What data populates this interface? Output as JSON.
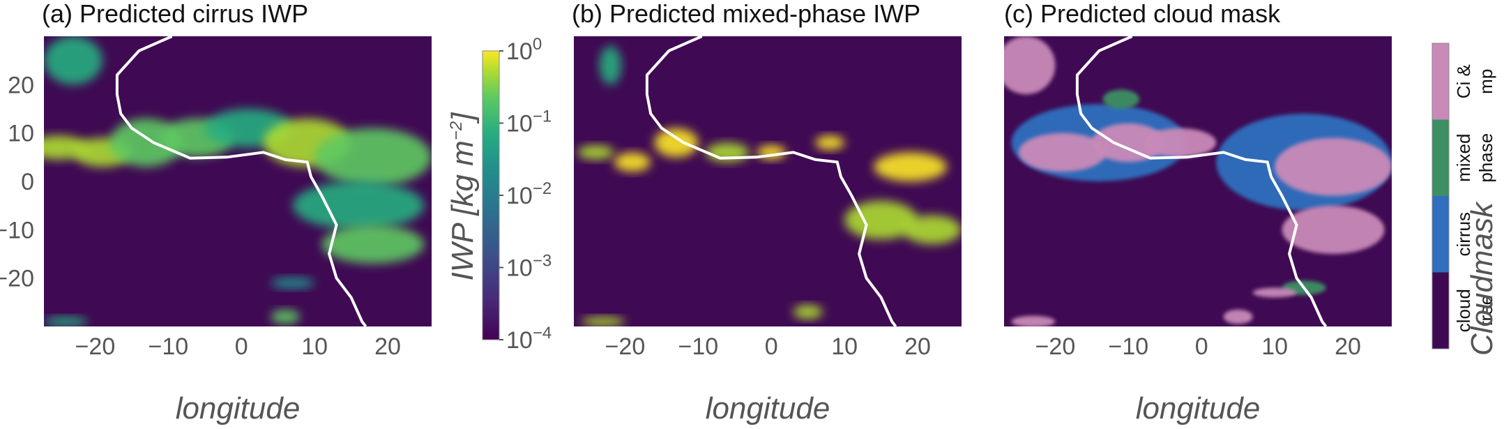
{
  "colors": {
    "background": "#3f0a53",
    "coastline": "#ffffff",
    "tick_text": "#555555",
    "mask_cloud_free": "#3f0a53",
    "mask_cirrus": "#2f6fbe",
    "mask_mixed_phase": "#3c8f63",
    "mask_ci_mp": "#c98ab8"
  },
  "chart_data": [
    {
      "type": "heatmap",
      "title": "(a)  Predicted cirrus IWP",
      "xlabel": "longitude",
      "ylabel": "",
      "xlim": [
        -27,
        26
      ],
      "ylim": [
        -30,
        30
      ],
      "xticks": [
        -20,
        -10,
        0,
        10,
        20
      ],
      "yticks": [
        20,
        10,
        0,
        -10,
        -20
      ],
      "scale": "log",
      "colorbar_label": "IWP [kg m",
      "colorbar_label_exp": "−2",
      "colorbar_label_close": "]",
      "colorbar_ticks": [
        {
          "value": 1,
          "base": "10",
          "exp": "0"
        },
        {
          "value": 0.1,
          "base": "10",
          "exp": "−1"
        },
        {
          "value": 0.01,
          "base": "10",
          "exp": "−2"
        },
        {
          "value": 0.001,
          "base": "10",
          "exp": "−3"
        },
        {
          "value": 0.0001,
          "base": "10",
          "exp": "−4"
        }
      ],
      "colorbar_range": [
        0.0001,
        1
      ]
    },
    {
      "type": "heatmap",
      "title": "(b)  Predicted mixed-phase IWP",
      "xlabel": "longitude",
      "ylabel": "",
      "xlim": [
        -27,
        26
      ],
      "ylim": [
        -30,
        30
      ],
      "xticks": [
        -20,
        -10,
        0,
        10,
        20
      ],
      "scale": "log",
      "colorbar_range": [
        0.0001,
        1
      ]
    },
    {
      "type": "heatmap",
      "title": "(c)  Predicted cloud mask",
      "xlabel": "longitude",
      "ylabel": "",
      "xlim": [
        -27,
        26
      ],
      "ylim": [
        -30,
        30
      ],
      "xticks": [
        -20,
        -10,
        0,
        10,
        20
      ],
      "colorbar_label": "Cloudmask",
      "categories": [
        {
          "line1": "Ci &",
          "line2": "mp",
          "color": "#c98ab8"
        },
        {
          "line1": "mixed",
          "line2": "phase",
          "color": "#3c8f63"
        },
        {
          "line1": "cirrus",
          "line2": "",
          "color": "#2f6fbe"
        },
        {
          "line1": "cloud",
          "line2": "free",
          "color": "#3f0a53"
        }
      ]
    }
  ],
  "coastline": [
    [
      -9.5,
      30
    ],
    [
      -14,
      27
    ],
    [
      -17,
      22
    ],
    [
      -17,
      18
    ],
    [
      -16.5,
      14
    ],
    [
      -15,
      11
    ],
    [
      -12,
      8
    ],
    [
      -7,
      4.8
    ],
    [
      -2,
      5
    ],
    [
      3,
      6
    ],
    [
      6,
      4.5
    ],
    [
      9,
      4
    ],
    [
      9.5,
      1
    ],
    [
      11,
      -3
    ],
    [
      13,
      -9
    ],
    [
      12,
      -15
    ],
    [
      13,
      -20
    ],
    [
      15,
      -24
    ],
    [
      16.5,
      -29
    ],
    [
      17,
      -30
    ]
  ],
  "cirrus_blobs": [
    {
      "lon": -23,
      "lat": 25,
      "rx": 4,
      "ry": 5,
      "v": 0.02
    },
    {
      "lon": -25,
      "lat": 7,
      "rx": 4,
      "ry": 2.5,
      "v": 0.2
    },
    {
      "lon": -19,
      "lat": 6,
      "rx": 4,
      "ry": 3,
      "v": 0.4
    },
    {
      "lon": -13,
      "lat": 8,
      "rx": 5,
      "ry": 5,
      "v": 0.08
    },
    {
      "lon": -6,
      "lat": 9,
      "rx": 5,
      "ry": 4,
      "v": 0.15
    },
    {
      "lon": 1,
      "lat": 11,
      "rx": 6,
      "ry": 4,
      "v": 0.05
    },
    {
      "lon": 9,
      "lat": 8,
      "rx": 6,
      "ry": 5,
      "v": 0.2
    },
    {
      "lon": 18,
      "lat": 5,
      "rx": 8,
      "ry": 6,
      "v": 0.1
    },
    {
      "lon": 16,
      "lat": -5,
      "rx": 9,
      "ry": 5,
      "v": 0.05
    },
    {
      "lon": 18,
      "lat": -13,
      "rx": 7,
      "ry": 4,
      "v": 0.1
    },
    {
      "lon": 7,
      "lat": -21,
      "rx": 3,
      "ry": 1.2,
      "v": 0.01
    },
    {
      "lon": -24,
      "lat": -29,
      "rx": 3,
      "ry": 1,
      "v": 0.05
    },
    {
      "lon": 6,
      "lat": -28,
      "rx": 2,
      "ry": 1.5,
      "v": 0.08
    }
  ],
  "mixed_blobs": [
    {
      "lon": -24,
      "lat": 6,
      "rx": 2.5,
      "ry": 1.5,
      "v": 0.5
    },
    {
      "lon": -19,
      "lat": 4,
      "rx": 2.5,
      "ry": 2,
      "v": 0.9
    },
    {
      "lon": -13,
      "lat": 8,
      "rx": 3,
      "ry": 3,
      "v": 0.6
    },
    {
      "lon": -6,
      "lat": 6,
      "rx": 3,
      "ry": 2,
      "v": 0.4
    },
    {
      "lon": 0,
      "lat": 6,
      "rx": 2,
      "ry": 1.5,
      "v": 0.7
    },
    {
      "lon": 8,
      "lat": 8,
      "rx": 2,
      "ry": 1.5,
      "v": 0.8
    },
    {
      "lon": 19,
      "lat": 3,
      "rx": 5,
      "ry": 3,
      "v": 0.6
    },
    {
      "lon": 15,
      "lat": -8,
      "rx": 5,
      "ry": 4,
      "v": 0.5
    },
    {
      "lon": 22,
      "lat": -10,
      "rx": 4,
      "ry": 3,
      "v": 0.3
    },
    {
      "lon": 5,
      "lat": -27,
      "rx": 2,
      "ry": 1.5,
      "v": 0.4
    },
    {
      "lon": -23,
      "lat": -29,
      "rx": 3,
      "ry": 1,
      "v": 0.2
    },
    {
      "lon": -22,
      "lat": 24,
      "rx": 1.5,
      "ry": 4,
      "v": 0.02
    }
  ],
  "mask_blobs": [
    {
      "lon": -14,
      "lat": 8,
      "rx": 12,
      "ry": 8,
      "c": "cirrus"
    },
    {
      "lon": 14,
      "lat": 4,
      "rx": 12,
      "ry": 10,
      "c": "cirrus"
    },
    {
      "lon": -24,
      "lat": 24,
      "rx": 4,
      "ry": 6,
      "c": "ci_mp"
    },
    {
      "lon": -19,
      "lat": 6,
      "rx": 6,
      "ry": 4,
      "c": "ci_mp"
    },
    {
      "lon": -10,
      "lat": 8,
      "rx": 5,
      "ry": 4,
      "c": "ci_mp"
    },
    {
      "lon": -3,
      "lat": 8,
      "rx": 5,
      "ry": 3,
      "c": "ci_mp"
    },
    {
      "lon": 18,
      "lat": 3,
      "rx": 8,
      "ry": 6,
      "c": "ci_mp"
    },
    {
      "lon": 18,
      "lat": -10,
      "rx": 7,
      "ry": 5,
      "c": "ci_mp"
    },
    {
      "lon": -11,
      "lat": 17,
      "rx": 2.5,
      "ry": 2,
      "c": "mixed_phase"
    },
    {
      "lon": 14,
      "lat": -22,
      "rx": 3,
      "ry": 1.5,
      "c": "mixed_phase"
    },
    {
      "lon": 10,
      "lat": -23,
      "rx": 3,
      "ry": 1,
      "c": "ci_mp"
    },
    {
      "lon": -23,
      "lat": -29,
      "rx": 3,
      "ry": 1.2,
      "c": "ci_mp"
    },
    {
      "lon": 5,
      "lat": -28,
      "rx": 2,
      "ry": 1.5,
      "c": "ci_mp"
    }
  ]
}
